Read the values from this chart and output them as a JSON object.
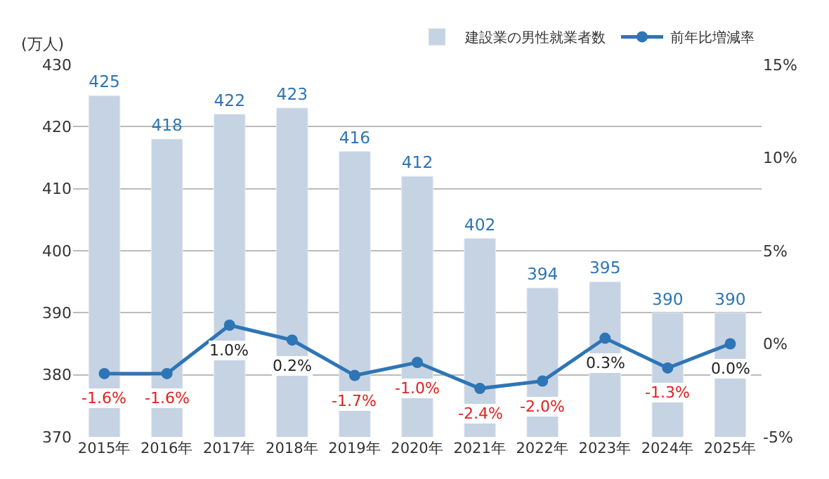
{
  "chart_data": {
    "type": "bar",
    "ylabel": "(万人)",
    "categories": [
      "2015年",
      "2016年",
      "2017年",
      "2018年",
      "2019年",
      "2020年",
      "2021年",
      "2022年",
      "2023年",
      "2024年",
      "2025年"
    ],
    "series": [
      {
        "name": "建設業の男性就業者数",
        "color": "#c5d3e3",
        "values": [
          425,
          418,
          422,
          423,
          416,
          412,
          402,
          394,
          395,
          390,
          390
        ],
        "value_labels": [
          "425",
          "418",
          "422",
          "423",
          "416",
          "412",
          "402",
          "394",
          "395",
          "390",
          "390"
        ]
      },
      {
        "name": "前年比増減率",
        "type": "line",
        "axis": "y2",
        "color": "#2e75b6",
        "marker": "circle",
        "values": [
          -1.6,
          -1.6,
          1.0,
          0.2,
          -1.7,
          -1.0,
          -2.4,
          -2.0,
          0.3,
          -1.3,
          0.0
        ],
        "value_labels": [
          "-1.6%",
          "-1.6%",
          "1.0%",
          "0.2%",
          "-1.7%",
          "-1.0%",
          "-2.4%",
          "-2.0%",
          "0.3%",
          "-1.3%",
          "0.0%"
        ]
      }
    ],
    "ylim": [
      370,
      430
    ],
    "yticks": [
      370,
      380,
      390,
      400,
      410,
      420,
      430
    ],
    "y2lim": [
      -5,
      15
    ],
    "y2ticks": [
      {
        "value": -5,
        "label": "-5%"
      },
      {
        "value": 0,
        "label": "0%"
      },
      {
        "value": 5,
        "label": "5%"
      },
      {
        "value": 10,
        "label": "10%"
      },
      {
        "value": 15,
        "label": "15%"
      }
    ],
    "grid": "y",
    "legend": "top right"
  }
}
